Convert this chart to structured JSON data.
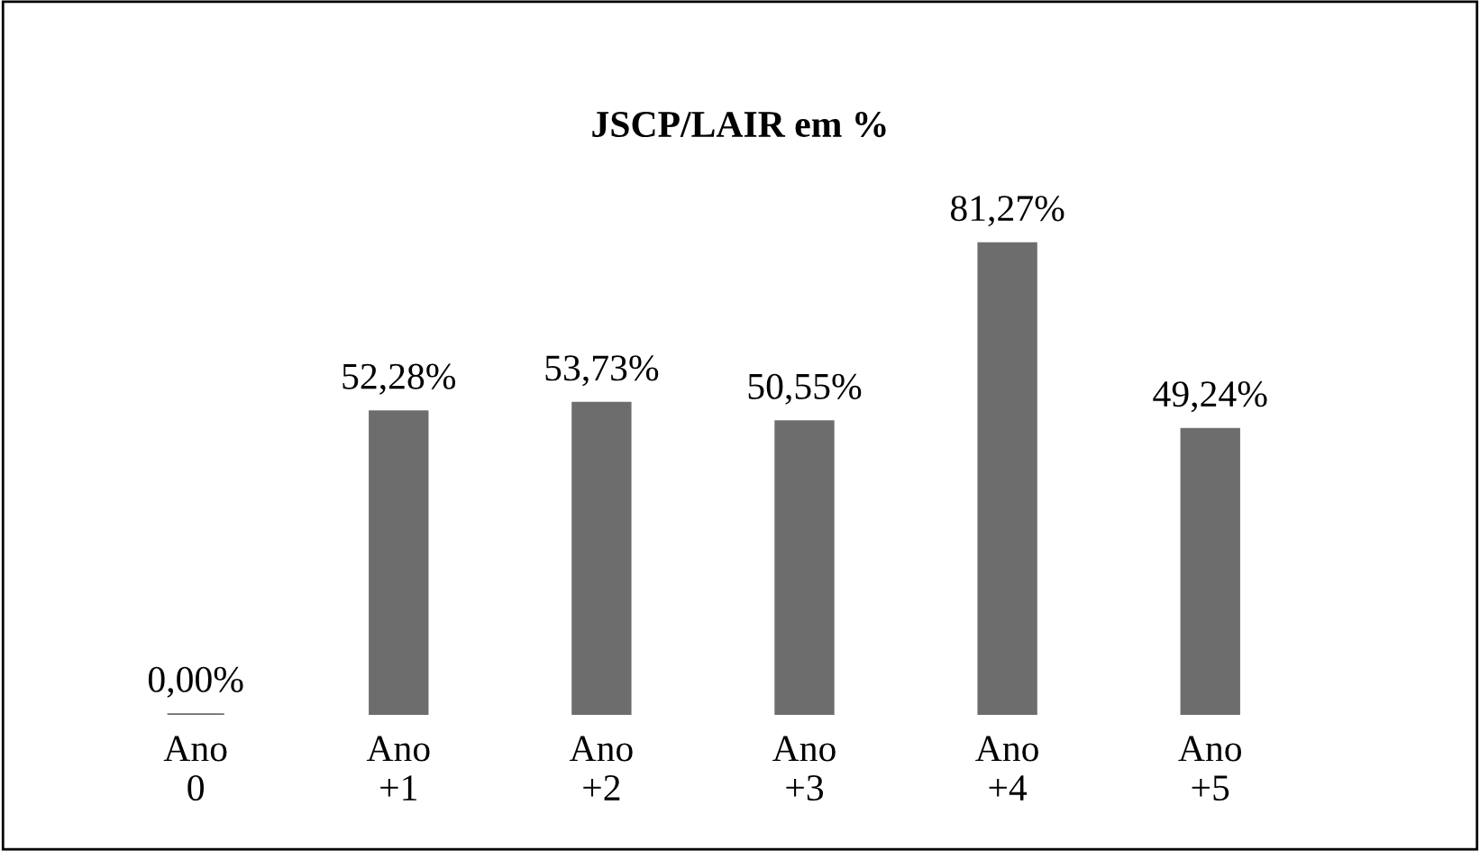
{
  "chart_data": {
    "type": "bar",
    "title": "JSCP/LAIR em %",
    "categories": [
      "Ano\n0",
      "Ano\n+1",
      "Ano\n+2",
      "Ano\n+3",
      "Ano\n+4",
      "Ano\n+5"
    ],
    "values": [
      0.0,
      52.28,
      53.73,
      50.55,
      81.27,
      49.24
    ],
    "value_labels": [
      "0,00%",
      "52,28%",
      "53,73%",
      "50,55%",
      "81,27%",
      "49,24%"
    ],
    "color": "#6e6d6d",
    "grid": false,
    "legend": false
  }
}
